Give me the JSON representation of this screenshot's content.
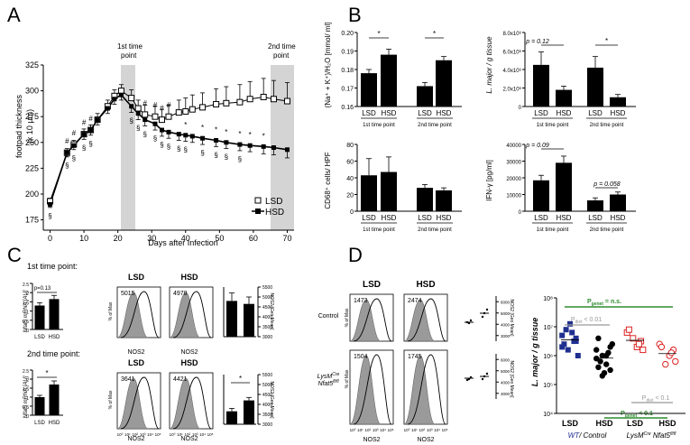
{
  "panels": {
    "A": "A",
    "B": "B",
    "C": "C",
    "D": "D"
  },
  "panelA": {
    "ylabel_line1": "footpad thickness",
    "ylabel_line2": "(x 10 µm)",
    "xlabel": "Days after Infection",
    "first_tp": [
      "1st time",
      "point"
    ],
    "second_tp": [
      "2nd time",
      "point"
    ],
    "legend": [
      "LSD",
      "HSD"
    ],
    "hash_marks": [
      "#",
      "#",
      "#",
      "#",
      "#",
      "#",
      "#",
      "#"
    ],
    "section_marks": [
      "§",
      "§",
      "§",
      "§",
      "§",
      "§",
      "§",
      "§",
      "§",
      "§",
      "§",
      "§",
      "§",
      "§",
      "§",
      "§",
      "§"
    ],
    "star_marks": [
      "*",
      "*",
      "*",
      "*",
      "*",
      "*",
      "*"
    ]
  },
  "panelB": {
    "b1_ylabel": "(Na⁺ + K⁺)/H₂O [mmol/ ml]",
    "b2_ylabel": "L. major / g tissue",
    "b3_ylabel": "CD68⁺ cells/ HPF",
    "b4_ylabel": "IFN-γ [pg/ml]",
    "p_012": "p = 0.12",
    "p_009": "p = 0.09",
    "p_0058": "p = 0.058",
    "star": "*",
    "tp1": "1st time point",
    "tp2": "2nd time point",
    "bar_labels": [
      "LSD",
      "HSD"
    ]
  },
  "panelC": {
    "tp1_title": "1st time point:",
    "tp2_title": "2nd time point:",
    "p_013": "p=0.13",
    "star": "*",
    "ylabel": "Nfat5 mRNA [AU]",
    "hist_ylabel": "% of Max",
    "nos2_axis": "NOS2 [Geo Mean]",
    "xlabel": "NOS2",
    "col_labels": [
      "LSD",
      "HSD"
    ],
    "values_tp1": [
      "5015",
      "4978"
    ],
    "values_tp2": [
      "3641",
      "4421"
    ]
  },
  "panelD": {
    "col_labels": [
      "LSD",
      "HSD"
    ],
    "row_control": "Control",
    "row_lysm": "LysMCre Nfat5fl/fl",
    "values_control": [
      "1473",
      "2474"
    ],
    "values_lysm": [
      "1504",
      "1745"
    ],
    "xlabel": "NOS2",
    "hist_ylabel": "% of Max",
    "nos2_axis": "NOS2 [Geo Mean]",
    "scatter_ylabel": "L. major / g tissue",
    "p_genet": "Pgenet = n.s.",
    "p_diet_01": "Pdiet < 0.01",
    "p_diet_1": "Pdiet < 0.1",
    "p_genet_1": "Pgenet < 0.1",
    "group_labels": [
      "LSD",
      "HSD",
      "LSD",
      "HSD"
    ],
    "footer_left": "WT/ Control",
    "footer_right": "LysMCre Nfat5fl/fl"
  },
  "chart_data": [
    {
      "type": "line",
      "title": "",
      "xlabel": "Days after Infection",
      "ylabel": "footpad thickness (x 10 µm)",
      "xlim": [
        -2,
        72
      ],
      "ylim": [
        165,
        325
      ],
      "x": [
        0,
        5,
        7,
        10,
        12,
        14,
        17,
        19,
        21,
        24,
        26,
        28,
        31,
        33,
        35,
        38,
        40,
        42,
        45,
        49,
        52,
        56,
        59,
        63,
        66,
        70
      ],
      "series": [
        {
          "name": "LSD",
          "values": [
            193,
            240,
            248,
            258,
            262,
            272,
            285,
            295,
            300,
            293,
            283,
            277,
            275,
            272,
            275,
            279,
            280,
            282,
            284,
            287,
            288,
            289,
            292,
            294,
            292,
            290
          ],
          "err": [
            3,
            4,
            4,
            5,
            5,
            6,
            6,
            6,
            6,
            8,
            8,
            9,
            10,
            10,
            11,
            12,
            13,
            14,
            14,
            15,
            16,
            17,
            17,
            18,
            18,
            18
          ]
        },
        {
          "name": "HSD",
          "values": [
            190,
            240,
            247,
            258,
            262,
            272,
            283,
            292,
            296,
            285,
            278,
            272,
            268,
            262,
            260,
            258,
            257,
            256,
            254,
            252,
            250,
            248,
            247,
            246,
            245,
            243
          ],
          "err": [
            3,
            4,
            4,
            5,
            5,
            5,
            5,
            5,
            5,
            6,
            6,
            6,
            6,
            6,
            6,
            6,
            6,
            6,
            6,
            6,
            6,
            6,
            6,
            7,
            7,
            8
          ]
        }
      ]
    },
    {
      "type": "bar",
      "categories": [
        "LSD",
        "HSD",
        "LSD",
        "HSD"
      ],
      "values": [
        0.178,
        0.188,
        0.171,
        0.185
      ],
      "err": [
        0.002,
        0.003,
        0.002,
        0.002
      ],
      "ylim": [
        0.16,
        0.2
      ]
    },
    {
      "type": "bar",
      "categories": [
        "LSD",
        "HSD",
        "LSD",
        "HSD"
      ],
      "values": [
        4.5,
        1.8,
        4.2,
        1.0
      ],
      "err": [
        1.4,
        0.4,
        1.2,
        0.3
      ],
      "ylim": [
        0,
        8
      ],
      "ylabel_unit": "x 10^6"
    },
    {
      "type": "bar",
      "categories": [
        "LSD",
        "HSD",
        "LSD",
        "HSD"
      ],
      "values": [
        43,
        47,
        28,
        25
      ],
      "err": [
        20,
        18,
        4,
        3
      ],
      "ylim": [
        0,
        80
      ]
    },
    {
      "type": "bar",
      "categories": [
        "LSD",
        "HSD",
        "LSD",
        "HSD"
      ],
      "values": [
        18500,
        29000,
        6500,
        10000
      ],
      "err": [
        3000,
        4000,
        1500,
        1500
      ],
      "ylim": [
        0,
        40000
      ]
    },
    {
      "type": "bar",
      "categories": [
        "LSD",
        "HSD"
      ],
      "values": [
        1.3,
        1.65
      ],
      "err": [
        0.15,
        0.2
      ],
      "ylim": [
        0,
        2.5
      ]
    },
    {
      "type": "bar",
      "categories": [
        "LSD",
        "HSD"
      ],
      "values": [
        1.0,
        1.7
      ],
      "err": [
        0.1,
        0.2
      ],
      "ylim": [
        0,
        2.5
      ]
    },
    {
      "type": "bar",
      "categories": [
        "LSD",
        "HSD"
      ],
      "values": [
        4800,
        4650
      ],
      "err": [
        400,
        350
      ],
      "ylim": [
        3000,
        5500
      ]
    },
    {
      "type": "bar",
      "categories": [
        "LSD",
        "HSD"
      ],
      "values": [
        3650,
        4200
      ],
      "err": [
        150,
        150
      ],
      "ylim": [
        3000,
        5500
      ]
    },
    {
      "type": "scatter",
      "ylabel": "L. major / g tissue",
      "yscale": "log",
      "ylim": [
        4,
        8
      ],
      "groups": [
        "WT LSD",
        "WT HSD",
        "KO LSD",
        "KO HSD"
      ],
      "values": [
        [
          6.3,
          6.6,
          6.8,
          6.2,
          6.4,
          6.0,
          6.5,
          7.1,
          6.9,
          6.7,
          6.5
        ],
        [
          5.9,
          6.3,
          5.7,
          6.0,
          5.6,
          6.4,
          6.1,
          5.4,
          5.8,
          6.2,
          5.5,
          6.0,
          5.3,
          6.6
        ],
        [
          6.8,
          6.5,
          6.3,
          6.6,
          6.9,
          6.2,
          6.4
        ],
        [
          6.4,
          6.2,
          6.0,
          5.7,
          6.3,
          5.8,
          6.1
        ]
      ]
    }
  ]
}
